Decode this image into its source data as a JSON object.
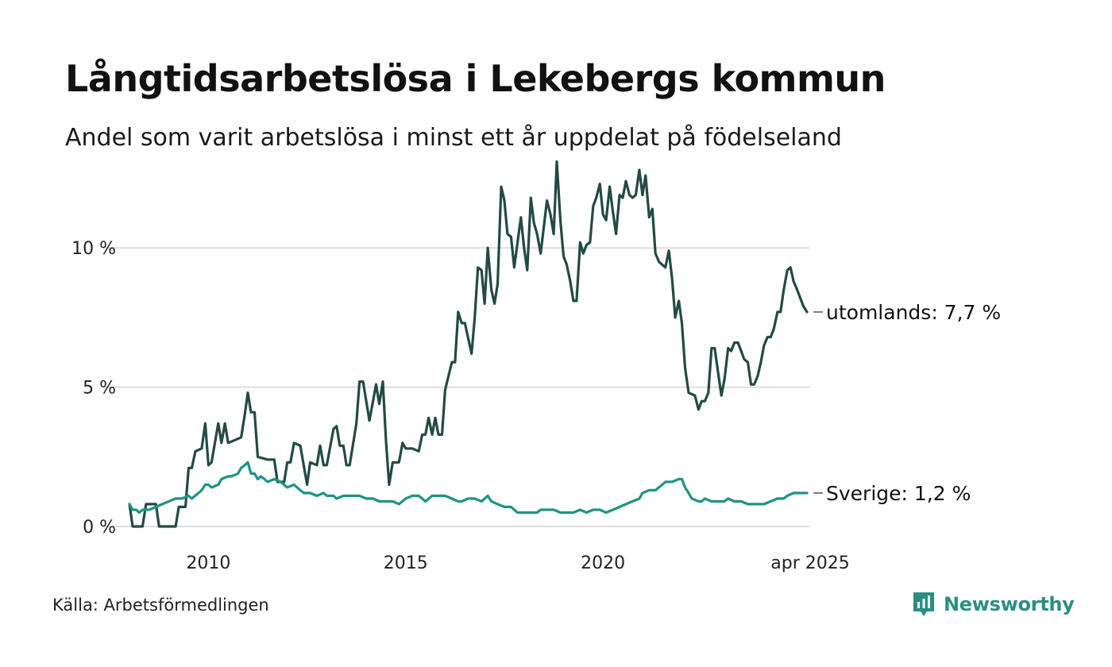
{
  "title": "Långtidsarbetslösa i Lekebergs kommun",
  "subtitle": "Andel som varit arbetslösa i minst ett år uppdelat på födelseland",
  "source": "Källa: Arbetsförmedlingen",
  "brand": {
    "name": "Newsworthy",
    "icon": "newsworthy-logo-icon",
    "color": "#2a8f80"
  },
  "chart_data": {
    "type": "line",
    "y_ticks": [
      {
        "value": 0,
        "label": "0 %"
      },
      {
        "value": 5,
        "label": "5 %"
      },
      {
        "value": 10,
        "label": "10 %"
      }
    ],
    "x_ticks": [
      {
        "value": 2010,
        "label": "2010"
      },
      {
        "value": 2015,
        "label": "2015"
      },
      {
        "value": 2020,
        "label": "2020"
      },
      {
        "value": 2025.25,
        "label": "apr 2025"
      }
    ],
    "xlim": [
      2008.0,
      2025.25
    ],
    "ylim": [
      0,
      13.2
    ],
    "grid": "horizontal",
    "series": [
      {
        "key": "utomlands",
        "end_label": "utomlands: 7,7 %",
        "color": "#234a43",
        "points": [
          [
            2008.0,
            0.8
          ],
          [
            2008.08,
            0.0
          ],
          [
            2008.33,
            0.0
          ],
          [
            2008.42,
            0.8
          ],
          [
            2008.67,
            0.8
          ],
          [
            2008.75,
            0.0
          ],
          [
            2009.17,
            0.0
          ],
          [
            2009.25,
            0.7
          ],
          [
            2009.42,
            0.7
          ],
          [
            2009.5,
            2.1
          ],
          [
            2009.58,
            2.1
          ],
          [
            2009.67,
            2.7
          ],
          [
            2009.83,
            2.8
          ],
          [
            2009.92,
            3.7
          ],
          [
            2010.0,
            2.2
          ],
          [
            2010.08,
            2.3
          ],
          [
            2010.25,
            3.7
          ],
          [
            2010.33,
            3.0
          ],
          [
            2010.42,
            3.7
          ],
          [
            2010.5,
            3.0
          ],
          [
            2010.67,
            3.1
          ],
          [
            2010.83,
            3.2
          ],
          [
            2010.92,
            4.0
          ],
          [
            2011.0,
            4.8
          ],
          [
            2011.08,
            4.1
          ],
          [
            2011.17,
            4.1
          ],
          [
            2011.25,
            2.5
          ],
          [
            2011.5,
            2.4
          ],
          [
            2011.67,
            2.4
          ],
          [
            2011.75,
            1.6
          ],
          [
            2011.92,
            1.6
          ],
          [
            2012.0,
            2.3
          ],
          [
            2012.08,
            2.3
          ],
          [
            2012.17,
            3.0
          ],
          [
            2012.33,
            2.9
          ],
          [
            2012.5,
            1.5
          ],
          [
            2012.58,
            2.3
          ],
          [
            2012.75,
            2.2
          ],
          [
            2012.83,
            2.9
          ],
          [
            2012.92,
            2.2
          ],
          [
            2013.0,
            2.2
          ],
          [
            2013.17,
            3.5
          ],
          [
            2013.25,
            3.6
          ],
          [
            2013.33,
            2.9
          ],
          [
            2013.42,
            2.9
          ],
          [
            2013.5,
            2.2
          ],
          [
            2013.58,
            2.2
          ],
          [
            2013.75,
            3.7
          ],
          [
            2013.83,
            5.2
          ],
          [
            2013.92,
            5.2
          ],
          [
            2014.08,
            3.8
          ],
          [
            2014.25,
            5.1
          ],
          [
            2014.33,
            4.4
          ],
          [
            2014.42,
            5.2
          ],
          [
            2014.5,
            3.1
          ],
          [
            2014.58,
            1.5
          ],
          [
            2014.67,
            2.3
          ],
          [
            2014.83,
            2.3
          ],
          [
            2014.92,
            3.0
          ],
          [
            2015.0,
            2.8
          ],
          [
            2015.17,
            2.8
          ],
          [
            2015.33,
            2.7
          ],
          [
            2015.42,
            3.3
          ],
          [
            2015.5,
            3.3
          ],
          [
            2015.58,
            3.9
          ],
          [
            2015.67,
            3.3
          ],
          [
            2015.75,
            3.9
          ],
          [
            2015.83,
            3.3
          ],
          [
            2015.92,
            3.3
          ],
          [
            2016.0,
            4.9
          ],
          [
            2016.17,
            5.9
          ],
          [
            2016.25,
            5.9
          ],
          [
            2016.33,
            7.7
          ],
          [
            2016.42,
            7.3
          ],
          [
            2016.5,
            7.3
          ],
          [
            2016.67,
            6.2
          ],
          [
            2016.75,
            7.5
          ],
          [
            2016.83,
            9.3
          ],
          [
            2016.92,
            9.2
          ],
          [
            2017.0,
            8.0
          ],
          [
            2017.08,
            10.0
          ],
          [
            2017.17,
            8.5
          ],
          [
            2017.25,
            8.0
          ],
          [
            2017.33,
            8.7
          ],
          [
            2017.42,
            12.2
          ],
          [
            2017.5,
            11.7
          ],
          [
            2017.58,
            10.5
          ],
          [
            2017.67,
            10.4
          ],
          [
            2017.75,
            9.3
          ],
          [
            2017.92,
            11.1
          ],
          [
            2018.0,
            10.0
          ],
          [
            2018.08,
            9.2
          ],
          [
            2018.17,
            11.8
          ],
          [
            2018.25,
            10.9
          ],
          [
            2018.33,
            10.5
          ],
          [
            2018.42,
            9.8
          ],
          [
            2018.58,
            11.7
          ],
          [
            2018.67,
            11.2
          ],
          [
            2018.75,
            10.5
          ],
          [
            2018.83,
            13.1
          ],
          [
            2018.92,
            11.0
          ],
          [
            2019.0,
            9.7
          ],
          [
            2019.08,
            9.4
          ],
          [
            2019.17,
            8.8
          ],
          [
            2019.25,
            8.1
          ],
          [
            2019.33,
            8.1
          ],
          [
            2019.42,
            10.2
          ],
          [
            2019.5,
            9.8
          ],
          [
            2019.58,
            10.1
          ],
          [
            2019.67,
            10.2
          ],
          [
            2019.75,
            11.5
          ],
          [
            2019.83,
            11.8
          ],
          [
            2019.92,
            12.3
          ],
          [
            2020.0,
            11.2
          ],
          [
            2020.08,
            11.0
          ],
          [
            2020.17,
            12.2
          ],
          [
            2020.25,
            11.3
          ],
          [
            2020.33,
            10.5
          ],
          [
            2020.42,
            11.9
          ],
          [
            2020.5,
            11.8
          ],
          [
            2020.58,
            12.4
          ],
          [
            2020.67,
            11.9
          ],
          [
            2020.75,
            11.8
          ],
          [
            2020.83,
            11.9
          ],
          [
            2020.92,
            12.8
          ],
          [
            2021.0,
            11.9
          ],
          [
            2021.08,
            12.6
          ],
          [
            2021.17,
            11.1
          ],
          [
            2021.25,
            11.4
          ],
          [
            2021.33,
            9.8
          ],
          [
            2021.42,
            9.5
          ],
          [
            2021.5,
            9.4
          ],
          [
            2021.58,
            9.3
          ],
          [
            2021.67,
            9.9
          ],
          [
            2021.75,
            8.9
          ],
          [
            2021.83,
            7.5
          ],
          [
            2021.92,
            8.1
          ],
          [
            2022.0,
            7.3
          ],
          [
            2022.08,
            5.7
          ],
          [
            2022.17,
            4.8
          ],
          [
            2022.33,
            4.7
          ],
          [
            2022.42,
            4.2
          ],
          [
            2022.5,
            4.5
          ],
          [
            2022.58,
            4.5
          ],
          [
            2022.67,
            4.8
          ],
          [
            2022.75,
            6.4
          ],
          [
            2022.83,
            6.4
          ],
          [
            2022.92,
            5.5
          ],
          [
            2023.0,
            4.7
          ],
          [
            2023.08,
            5.3
          ],
          [
            2023.17,
            6.4
          ],
          [
            2023.25,
            6.3
          ],
          [
            2023.33,
            6.6
          ],
          [
            2023.42,
            6.6
          ],
          [
            2023.5,
            6.3
          ],
          [
            2023.58,
            6.0
          ],
          [
            2023.67,
            5.9
          ],
          [
            2023.75,
            5.1
          ],
          [
            2023.83,
            5.1
          ],
          [
            2023.92,
            5.4
          ],
          [
            2024.0,
            5.9
          ],
          [
            2024.08,
            6.5
          ],
          [
            2024.17,
            6.8
          ],
          [
            2024.25,
            6.8
          ],
          [
            2024.33,
            7.1
          ],
          [
            2024.42,
            7.7
          ],
          [
            2024.5,
            7.7
          ],
          [
            2024.58,
            8.5
          ],
          [
            2024.67,
            9.2
          ],
          [
            2024.75,
            9.3
          ],
          [
            2024.83,
            8.8
          ],
          [
            2024.92,
            8.5
          ],
          [
            2025.0,
            8.2
          ],
          [
            2025.08,
            7.9
          ],
          [
            2025.17,
            7.7
          ]
        ]
      },
      {
        "key": "sverige",
        "end_label": "Sverige: 1,2 %",
        "color": "#1f9484",
        "points": [
          [
            2008.0,
            0.8
          ],
          [
            2008.08,
            0.6
          ],
          [
            2008.17,
            0.6
          ],
          [
            2008.25,
            0.5
          ],
          [
            2008.33,
            0.6
          ],
          [
            2008.5,
            0.6
          ],
          [
            2008.67,
            0.7
          ],
          [
            2008.83,
            0.8
          ],
          [
            2009.0,
            0.9
          ],
          [
            2009.17,
            1.0
          ],
          [
            2009.33,
            1.0
          ],
          [
            2009.5,
            1.1
          ],
          [
            2009.58,
            1.0
          ],
          [
            2009.75,
            1.2
          ],
          [
            2009.83,
            1.3
          ],
          [
            2009.92,
            1.5
          ],
          [
            2010.0,
            1.5
          ],
          [
            2010.08,
            1.4
          ],
          [
            2010.25,
            1.5
          ],
          [
            2010.33,
            1.7
          ],
          [
            2010.5,
            1.8
          ],
          [
            2010.58,
            1.8
          ],
          [
            2010.75,
            1.9
          ],
          [
            2010.83,
            2.1
          ],
          [
            2010.92,
            2.2
          ],
          [
            2011.0,
            2.3
          ],
          [
            2011.08,
            1.9
          ],
          [
            2011.17,
            1.9
          ],
          [
            2011.25,
            1.7
          ],
          [
            2011.33,
            1.8
          ],
          [
            2011.42,
            1.7
          ],
          [
            2011.5,
            1.6
          ],
          [
            2011.67,
            1.7
          ],
          [
            2011.83,
            1.6
          ],
          [
            2012.0,
            1.4
          ],
          [
            2012.17,
            1.5
          ],
          [
            2012.33,
            1.3
          ],
          [
            2012.42,
            1.2
          ],
          [
            2012.58,
            1.2
          ],
          [
            2012.75,
            1.1
          ],
          [
            2012.92,
            1.2
          ],
          [
            2013.0,
            1.1
          ],
          [
            2013.17,
            1.1
          ],
          [
            2013.25,
            1.0
          ],
          [
            2013.42,
            1.1
          ],
          [
            2013.5,
            1.1
          ],
          [
            2013.67,
            1.1
          ],
          [
            2013.83,
            1.1
          ],
          [
            2014.0,
            1.0
          ],
          [
            2014.17,
            1.0
          ],
          [
            2014.33,
            0.9
          ],
          [
            2014.5,
            0.9
          ],
          [
            2014.67,
            0.9
          ],
          [
            2014.83,
            0.8
          ],
          [
            2015.0,
            1.0
          ],
          [
            2015.17,
            1.1
          ],
          [
            2015.33,
            1.1
          ],
          [
            2015.42,
            1.0
          ],
          [
            2015.5,
            0.9
          ],
          [
            2015.67,
            1.1
          ],
          [
            2015.83,
            1.1
          ],
          [
            2016.0,
            1.1
          ],
          [
            2016.17,
            1.0
          ],
          [
            2016.33,
            0.9
          ],
          [
            2016.42,
            0.9
          ],
          [
            2016.58,
            1.0
          ],
          [
            2016.75,
            1.0
          ],
          [
            2016.92,
            0.9
          ],
          [
            2017.08,
            1.1
          ],
          [
            2017.17,
            0.9
          ],
          [
            2017.33,
            0.8
          ],
          [
            2017.5,
            0.7
          ],
          [
            2017.67,
            0.7
          ],
          [
            2017.83,
            0.5
          ],
          [
            2018.0,
            0.5
          ],
          [
            2018.17,
            0.5
          ],
          [
            2018.33,
            0.5
          ],
          [
            2018.42,
            0.6
          ],
          [
            2018.58,
            0.6
          ],
          [
            2018.75,
            0.6
          ],
          [
            2018.92,
            0.5
          ],
          [
            2019.08,
            0.5
          ],
          [
            2019.25,
            0.5
          ],
          [
            2019.42,
            0.6
          ],
          [
            2019.58,
            0.5
          ],
          [
            2019.75,
            0.6
          ],
          [
            2019.92,
            0.6
          ],
          [
            2020.08,
            0.5
          ],
          [
            2020.25,
            0.6
          ],
          [
            2020.42,
            0.7
          ],
          [
            2020.58,
            0.8
          ],
          [
            2020.75,
            0.9
          ],
          [
            2020.92,
            1.0
          ],
          [
            2021.0,
            1.2
          ],
          [
            2021.17,
            1.3
          ],
          [
            2021.33,
            1.3
          ],
          [
            2021.5,
            1.5
          ],
          [
            2021.58,
            1.6
          ],
          [
            2021.75,
            1.6
          ],
          [
            2021.92,
            1.7
          ],
          [
            2022.0,
            1.7
          ],
          [
            2022.08,
            1.4
          ],
          [
            2022.17,
            1.2
          ],
          [
            2022.25,
            1.0
          ],
          [
            2022.42,
            0.9
          ],
          [
            2022.5,
            0.9
          ],
          [
            2022.58,
            1.0
          ],
          [
            2022.75,
            0.9
          ],
          [
            2022.92,
            0.9
          ],
          [
            2023.08,
            0.9
          ],
          [
            2023.17,
            1.0
          ],
          [
            2023.33,
            0.9
          ],
          [
            2023.5,
            0.9
          ],
          [
            2023.67,
            0.8
          ],
          [
            2023.83,
            0.8
          ],
          [
            2024.0,
            0.8
          ],
          [
            2024.08,
            0.8
          ],
          [
            2024.25,
            0.9
          ],
          [
            2024.42,
            1.0
          ],
          [
            2024.5,
            1.0
          ],
          [
            2024.58,
            1.0
          ],
          [
            2024.67,
            1.1
          ],
          [
            2024.83,
            1.2
          ],
          [
            2025.0,
            1.2
          ],
          [
            2025.17,
            1.2
          ]
        ]
      }
    ]
  }
}
